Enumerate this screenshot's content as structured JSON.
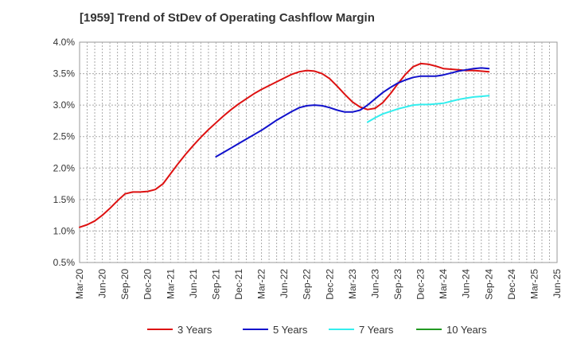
{
  "chart_data": {
    "type": "line",
    "title": "[1959]  Trend of StDev of Operating Cashflow Margin",
    "xlabel": "",
    "ylabel": "",
    "ylim": [
      0.5,
      4.0
    ],
    "x_ticks": [
      "Mar-20",
      "Jun-20",
      "Sep-20",
      "Dec-20",
      "Mar-21",
      "Jun-21",
      "Sep-21",
      "Dec-21",
      "Mar-22",
      "Jun-22",
      "Sep-22",
      "Dec-22",
      "Mar-23",
      "Jun-23",
      "Sep-23",
      "Dec-23",
      "Mar-24",
      "Jun-24",
      "Sep-24",
      "Dec-24",
      "Mar-25",
      "Jun-25"
    ],
    "y_ticks": [
      "0.5%",
      "1.0%",
      "1.5%",
      "2.0%",
      "2.5%",
      "3.0%",
      "3.5%",
      "4.0%"
    ],
    "grid": true,
    "legend_position": "bottom",
    "series": [
      {
        "name": "3 Years",
        "color": "#dd1111",
        "points": [
          [
            0,
            1.06
          ],
          [
            1,
            1.1
          ],
          [
            2,
            1.16
          ],
          [
            3,
            1.25
          ],
          [
            4,
            1.36
          ],
          [
            5,
            1.48
          ],
          [
            6,
            1.59
          ],
          [
            7,
            1.62
          ],
          [
            8,
            1.62
          ],
          [
            9,
            1.63
          ],
          [
            10,
            1.66
          ],
          [
            11,
            1.75
          ],
          [
            12,
            1.91
          ],
          [
            13,
            2.07
          ],
          [
            14,
            2.22
          ],
          [
            15,
            2.36
          ],
          [
            16,
            2.49
          ],
          [
            17,
            2.61
          ],
          [
            18,
            2.72
          ],
          [
            19,
            2.83
          ],
          [
            20,
            2.93
          ],
          [
            21,
            3.02
          ],
          [
            22,
            3.1
          ],
          [
            23,
            3.18
          ],
          [
            24,
            3.25
          ],
          [
            25,
            3.31
          ],
          [
            26,
            3.37
          ],
          [
            27,
            3.43
          ],
          [
            28,
            3.49
          ],
          [
            29,
            3.53
          ],
          [
            30,
            3.55
          ],
          [
            31,
            3.54
          ],
          [
            32,
            3.5
          ],
          [
            33,
            3.42
          ],
          [
            34,
            3.3
          ],
          [
            35,
            3.17
          ],
          [
            36,
            3.05
          ],
          [
            37,
            2.97
          ],
          [
            38,
            2.93
          ],
          [
            39,
            2.95
          ],
          [
            40,
            3.04
          ],
          [
            41,
            3.18
          ],
          [
            42,
            3.34
          ],
          [
            43,
            3.49
          ],
          [
            44,
            3.61
          ],
          [
            45,
            3.66
          ],
          [
            46,
            3.65
          ],
          [
            47,
            3.62
          ],
          [
            48,
            3.58
          ],
          [
            49,
            3.57
          ],
          [
            50,
            3.56
          ],
          [
            51,
            3.55
          ],
          [
            52,
            3.55
          ],
          [
            53,
            3.54
          ],
          [
            54,
            3.53
          ]
        ]
      },
      {
        "name": "5 Years",
        "color": "#1111cc",
        "points": [
          [
            18,
            2.18
          ],
          [
            19,
            2.25
          ],
          [
            20,
            2.32
          ],
          [
            21,
            2.39
          ],
          [
            22,
            2.46
          ],
          [
            23,
            2.53
          ],
          [
            24,
            2.6
          ],
          [
            25,
            2.68
          ],
          [
            26,
            2.76
          ],
          [
            27,
            2.83
          ],
          [
            28,
            2.9
          ],
          [
            29,
            2.96
          ],
          [
            30,
            2.99
          ],
          [
            31,
            3.0
          ],
          [
            32,
            2.99
          ],
          [
            33,
            2.96
          ],
          [
            34,
            2.92
          ],
          [
            35,
            2.89
          ],
          [
            36,
            2.89
          ],
          [
            37,
            2.92
          ],
          [
            38,
            3.0
          ],
          [
            39,
            3.1
          ],
          [
            40,
            3.2
          ],
          [
            41,
            3.28
          ],
          [
            42,
            3.35
          ],
          [
            43,
            3.4
          ],
          [
            44,
            3.44
          ],
          [
            45,
            3.46
          ],
          [
            46,
            3.46
          ],
          [
            47,
            3.46
          ],
          [
            48,
            3.48
          ],
          [
            49,
            3.51
          ],
          [
            50,
            3.54
          ],
          [
            51,
            3.56
          ],
          [
            52,
            3.58
          ],
          [
            53,
            3.59
          ],
          [
            54,
            3.58
          ]
        ]
      },
      {
        "name": "7 Years",
        "color": "#33eeee",
        "points": [
          [
            38,
            2.73
          ],
          [
            39,
            2.8
          ],
          [
            40,
            2.86
          ],
          [
            41,
            2.9
          ],
          [
            42,
            2.94
          ],
          [
            43,
            2.97
          ],
          [
            44,
            3.0
          ],
          [
            45,
            3.01
          ],
          [
            46,
            3.01
          ],
          [
            47,
            3.02
          ],
          [
            48,
            3.03
          ],
          [
            49,
            3.06
          ],
          [
            50,
            3.09
          ],
          [
            51,
            3.11
          ],
          [
            52,
            3.13
          ],
          [
            53,
            3.14
          ],
          [
            54,
            3.15
          ]
        ]
      },
      {
        "name": "10 Years",
        "color": "#229922",
        "points": []
      }
    ]
  }
}
